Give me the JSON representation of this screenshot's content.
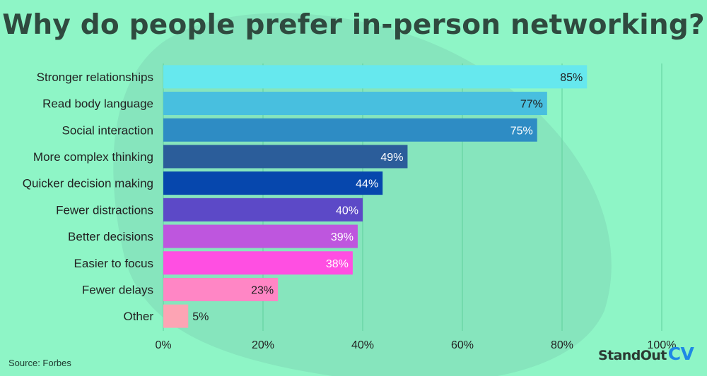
{
  "title": "Why do people prefer in-person networking?",
  "source": "Source: Forbes",
  "logo": {
    "main": "StandOut",
    "cv": "CV"
  },
  "colors": {
    "background": "#8ef5c6",
    "blob": "#86e5bd",
    "title": "#2f4a3f",
    "text": "#222222",
    "grid": "#5fcf9c",
    "logo_main": "#2b3a33",
    "logo_cv": "#1e88e5"
  },
  "chart_data": {
    "type": "bar",
    "orientation": "horizontal",
    "title": "Why do people prefer in-person networking?",
    "categories": [
      "Stronger relationships",
      "Read body language",
      "Social interaction",
      "More complex thinking",
      "Quicker decision making",
      "Fewer distractions",
      "Better decisions",
      "Easier to focus",
      "Fewer delays",
      "Other"
    ],
    "values": [
      85,
      77,
      75,
      49,
      44,
      40,
      39,
      38,
      23,
      5
    ],
    "value_labels": [
      "85%",
      "77%",
      "75%",
      "49%",
      "44%",
      "40%",
      "39%",
      "38%",
      "23%",
      "5%"
    ],
    "bar_colors": [
      "#66e8ee",
      "#48bfdf",
      "#2e8cc4",
      "#2b5d9a",
      "#0647ad",
      "#5c49c7",
      "#be56de",
      "#ff4fe2",
      "#ff86c5",
      "#fda4b4"
    ],
    "label_colors": [
      "#222222",
      "#222222",
      "#ffffff",
      "#ffffff",
      "#ffffff",
      "#ffffff",
      "#ffffff",
      "#ffffff",
      "#222222",
      "#222222"
    ],
    "xlim": [
      0,
      100
    ],
    "xticks": [
      0,
      20,
      40,
      60,
      80,
      100
    ],
    "xtick_labels": [
      "0%",
      "20%",
      "40%",
      "60%",
      "80%",
      "100%"
    ],
    "grid": true
  }
}
